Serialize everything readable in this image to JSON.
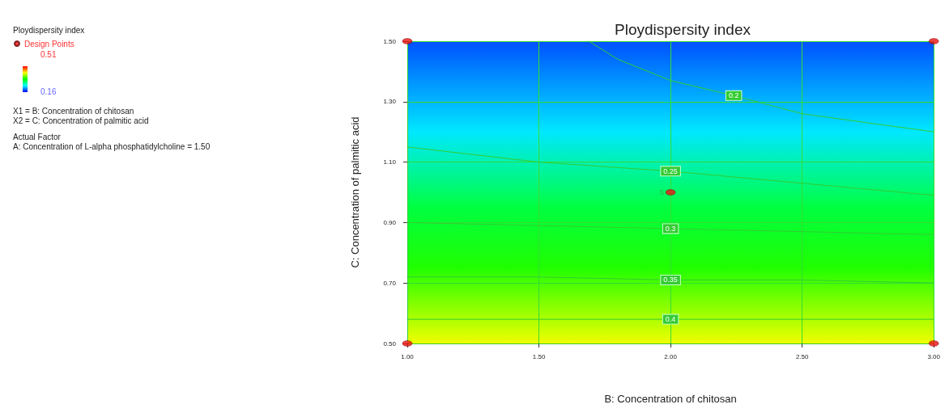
{
  "chart_data": {
    "type": "line",
    "title": "Ploydispersity index",
    "xlabel": "B: Concentration of chitosan",
    "ylabel": "C: Concentration of palmitic acid",
    "annotations": [
      "Ploydispersity index",
      "0.51",
      "0.16",
      "X1 = B: Concentration of chitosan",
      "X2 = C: Concentration of palmitic acid",
      "Actual Factor",
      "A: Concentration of L-alpha phosphatidylcholine = 1.50",
      {
        "text": "5",
        "x": 2.0,
        "y": 1.0
      }
    ],
    "xlim": [
      1,
      3
    ],
    "xticks": [
      {
        "value": 1,
        "label": "1.00"
      },
      {
        "value": 1.5,
        "label": "1.50"
      },
      {
        "value": 2,
        "label": "2.00"
      },
      {
        "value": 2.5,
        "label": "2.50"
      },
      {
        "value": 3,
        "label": "3.00"
      }
    ],
    "ylim": [
      0.5,
      1.5
    ],
    "yticks": [
      {
        "value": 0.5,
        "label": "0.50"
      },
      {
        "value": 0.7,
        "label": "0.70"
      },
      {
        "value": 0.9,
        "label": "0.90"
      },
      {
        "value": 1.1,
        "label": "1.10"
      },
      {
        "value": 1.3,
        "label": "1.30"
      },
      {
        "value": 1.5,
        "label": "1.50"
      }
    ],
    "grid": true,
    "legend": "top left",
    "line_style": "solid",
    "series": [
      {
        "name": "0.2",
        "color": "#33cc33",
        "x": [
          1.69,
          1.8,
          2.0,
          2.24,
          2.5,
          2.75,
          3.0
        ],
        "values": [
          1.5,
          1.44,
          1.37,
          1.32,
          1.26,
          1.23,
          1.2
        ]
      },
      {
        "name": "0.25",
        "color": "#33cc33",
        "x": [
          1,
          1.5,
          2,
          2.5,
          3
        ],
        "values": [
          1.15,
          1.1,
          1.07,
          1.03,
          0.99
        ]
      },
      {
        "name": "0.3",
        "color": "#33cc33",
        "x": [
          1,
          1.5,
          2,
          2.5,
          3
        ],
        "values": [
          0.9,
          0.89,
          0.88,
          0.87,
          0.86
        ]
      },
      {
        "name": "0.35",
        "color": "#33cc33",
        "x": [
          1,
          1.5,
          2,
          2.5,
          3
        ],
        "values": [
          0.72,
          0.72,
          0.71,
          0.71,
          0.7
        ]
      },
      {
        "name": "0.4",
        "color": "#33cc33",
        "x": [
          1,
          1.5,
          2,
          2.5,
          3
        ],
        "values": [
          0.58,
          0.58,
          0.58,
          0.58,
          0.58
        ]
      },
      {
        "name": "Design Points",
        "type": "scatter",
        "marker": "circle",
        "color": "#ee1111",
        "x": [
          1,
          1,
          2,
          3,
          3
        ],
        "values": [
          1.5,
          0.5,
          1.0,
          1.5,
          0.5
        ]
      }
    ]
  }
}
